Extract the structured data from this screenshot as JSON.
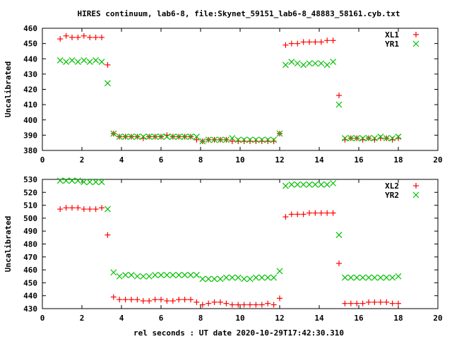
{
  "title": "HIRES continuum, lab6-8, file:Skynet_59151_lab6-8_48883_58161.cyb.txt",
  "xlabel": "rel seconds : UT date 2020-10-29T17:42:30.310",
  "colors": {
    "red": "#ff0000",
    "green": "#00c000"
  },
  "chart_data": [
    {
      "type": "scatter",
      "ylabel": "Uncalibrated",
      "xlim": [
        0,
        20
      ],
      "ylim": [
        380,
        460
      ],
      "xticks": [
        "0",
        "2",
        "4",
        "6",
        "8",
        "10",
        "12",
        "14",
        "16",
        "18",
        "20"
      ],
      "yticks": [
        "380",
        "390",
        "400",
        "410",
        "420",
        "430",
        "440",
        "450",
        "460"
      ],
      "legend_position": "top-right",
      "x": [
        0.9,
        1.2,
        1.5,
        1.8,
        2.1,
        2.4,
        2.7,
        3.0,
        3.3,
        3.6,
        3.9,
        4.2,
        4.5,
        4.8,
        5.1,
        5.4,
        5.7,
        6.0,
        6.3,
        6.6,
        6.9,
        7.2,
        7.5,
        7.8,
        8.1,
        8.4,
        8.7,
        9.0,
        9.3,
        9.6,
        9.9,
        10.2,
        10.5,
        10.8,
        11.1,
        11.4,
        11.7,
        12.0,
        12.3,
        12.6,
        12.9,
        13.2,
        13.5,
        13.8,
        14.1,
        14.4,
        14.7,
        15.0,
        15.3,
        15.6,
        15.9,
        16.2,
        16.5,
        16.8,
        17.1,
        17.4,
        17.7,
        18.0
      ],
      "series": [
        {
          "name": "XL1",
          "marker": "plus",
          "color": "#ff0000",
          "values": [
            453,
            455,
            454,
            454,
            455,
            454,
            454,
            454,
            436,
            391,
            389,
            389,
            389,
            389,
            388,
            389,
            389,
            389,
            390,
            389,
            389,
            389,
            389,
            387,
            386,
            387,
            387,
            387,
            387,
            386,
            386,
            386,
            386,
            386,
            386,
            386,
            386,
            391,
            449,
            450,
            450,
            451,
            451,
            451,
            451,
            452,
            452,
            416,
            387,
            388,
            388,
            387,
            388,
            387,
            388,
            388,
            387,
            388
          ]
        },
        {
          "name": "YR1",
          "marker": "cross",
          "color": "#00c000",
          "values": [
            439,
            438,
            439,
            438,
            439,
            438,
            439,
            438,
            424,
            391,
            389,
            389,
            389,
            389,
            389,
            389,
            389,
            389,
            389,
            389,
            389,
            389,
            389,
            389,
            386,
            387,
            387,
            387,
            387,
            388,
            387,
            387,
            387,
            387,
            387,
            387,
            387,
            391,
            436,
            438,
            437,
            436,
            437,
            437,
            437,
            436,
            438,
            410,
            388,
            388,
            388,
            388,
            388,
            388,
            389,
            388,
            388,
            389
          ]
        }
      ]
    },
    {
      "type": "scatter",
      "ylabel": "Uncalibrated",
      "xlim": [
        0,
        20
      ],
      "ylim": [
        430,
        530
      ],
      "xticks": [
        "0",
        "2",
        "4",
        "6",
        "8",
        "10",
        "12",
        "14",
        "16",
        "18",
        "20"
      ],
      "yticks": [
        "430",
        "440",
        "450",
        "460",
        "470",
        "480",
        "490",
        "500",
        "510",
        "520",
        "530"
      ],
      "legend_position": "top-right",
      "x": [
        0.9,
        1.2,
        1.5,
        1.8,
        2.1,
        2.4,
        2.7,
        3.0,
        3.3,
        3.6,
        3.9,
        4.2,
        4.5,
        4.8,
        5.1,
        5.4,
        5.7,
        6.0,
        6.3,
        6.6,
        6.9,
        7.2,
        7.5,
        7.8,
        8.1,
        8.4,
        8.7,
        9.0,
        9.3,
        9.6,
        9.9,
        10.2,
        10.5,
        10.8,
        11.1,
        11.4,
        11.7,
        12.0,
        12.3,
        12.6,
        12.9,
        13.2,
        13.5,
        13.8,
        14.1,
        14.4,
        14.7,
        15.0,
        15.3,
        15.6,
        15.9,
        16.2,
        16.5,
        16.8,
        17.1,
        17.4,
        17.7,
        18.0
      ],
      "series": [
        {
          "name": "XL2",
          "marker": "plus",
          "color": "#ff0000",
          "values": [
            507,
            508,
            508,
            508,
            507,
            507,
            507,
            508,
            487,
            439,
            437,
            437,
            437,
            437,
            436,
            436,
            437,
            437,
            436,
            436,
            437,
            437,
            437,
            435,
            433,
            434,
            435,
            435,
            434,
            433,
            433,
            433,
            433,
            433,
            433,
            434,
            433,
            438,
            501,
            503,
            503,
            503,
            504,
            504,
            504,
            504,
            504,
            465,
            434,
            434,
            434,
            434,
            435,
            435,
            435,
            435,
            434,
            434
          ]
        },
        {
          "name": "YR2",
          "marker": "cross",
          "color": "#00c000",
          "values": [
            529,
            529,
            529,
            529,
            528,
            528,
            528,
            528,
            507,
            458,
            455,
            456,
            456,
            455,
            455,
            455,
            456,
            456,
            456,
            456,
            456,
            456,
            456,
            456,
            453,
            453,
            453,
            453,
            454,
            454,
            454,
            453,
            453,
            454,
            454,
            454,
            454,
            459,
            525,
            526,
            526,
            526,
            526,
            526,
            526,
            526,
            527,
            487,
            454,
            454,
            454,
            454,
            454,
            454,
            454,
            454,
            454,
            455
          ]
        }
      ]
    }
  ]
}
